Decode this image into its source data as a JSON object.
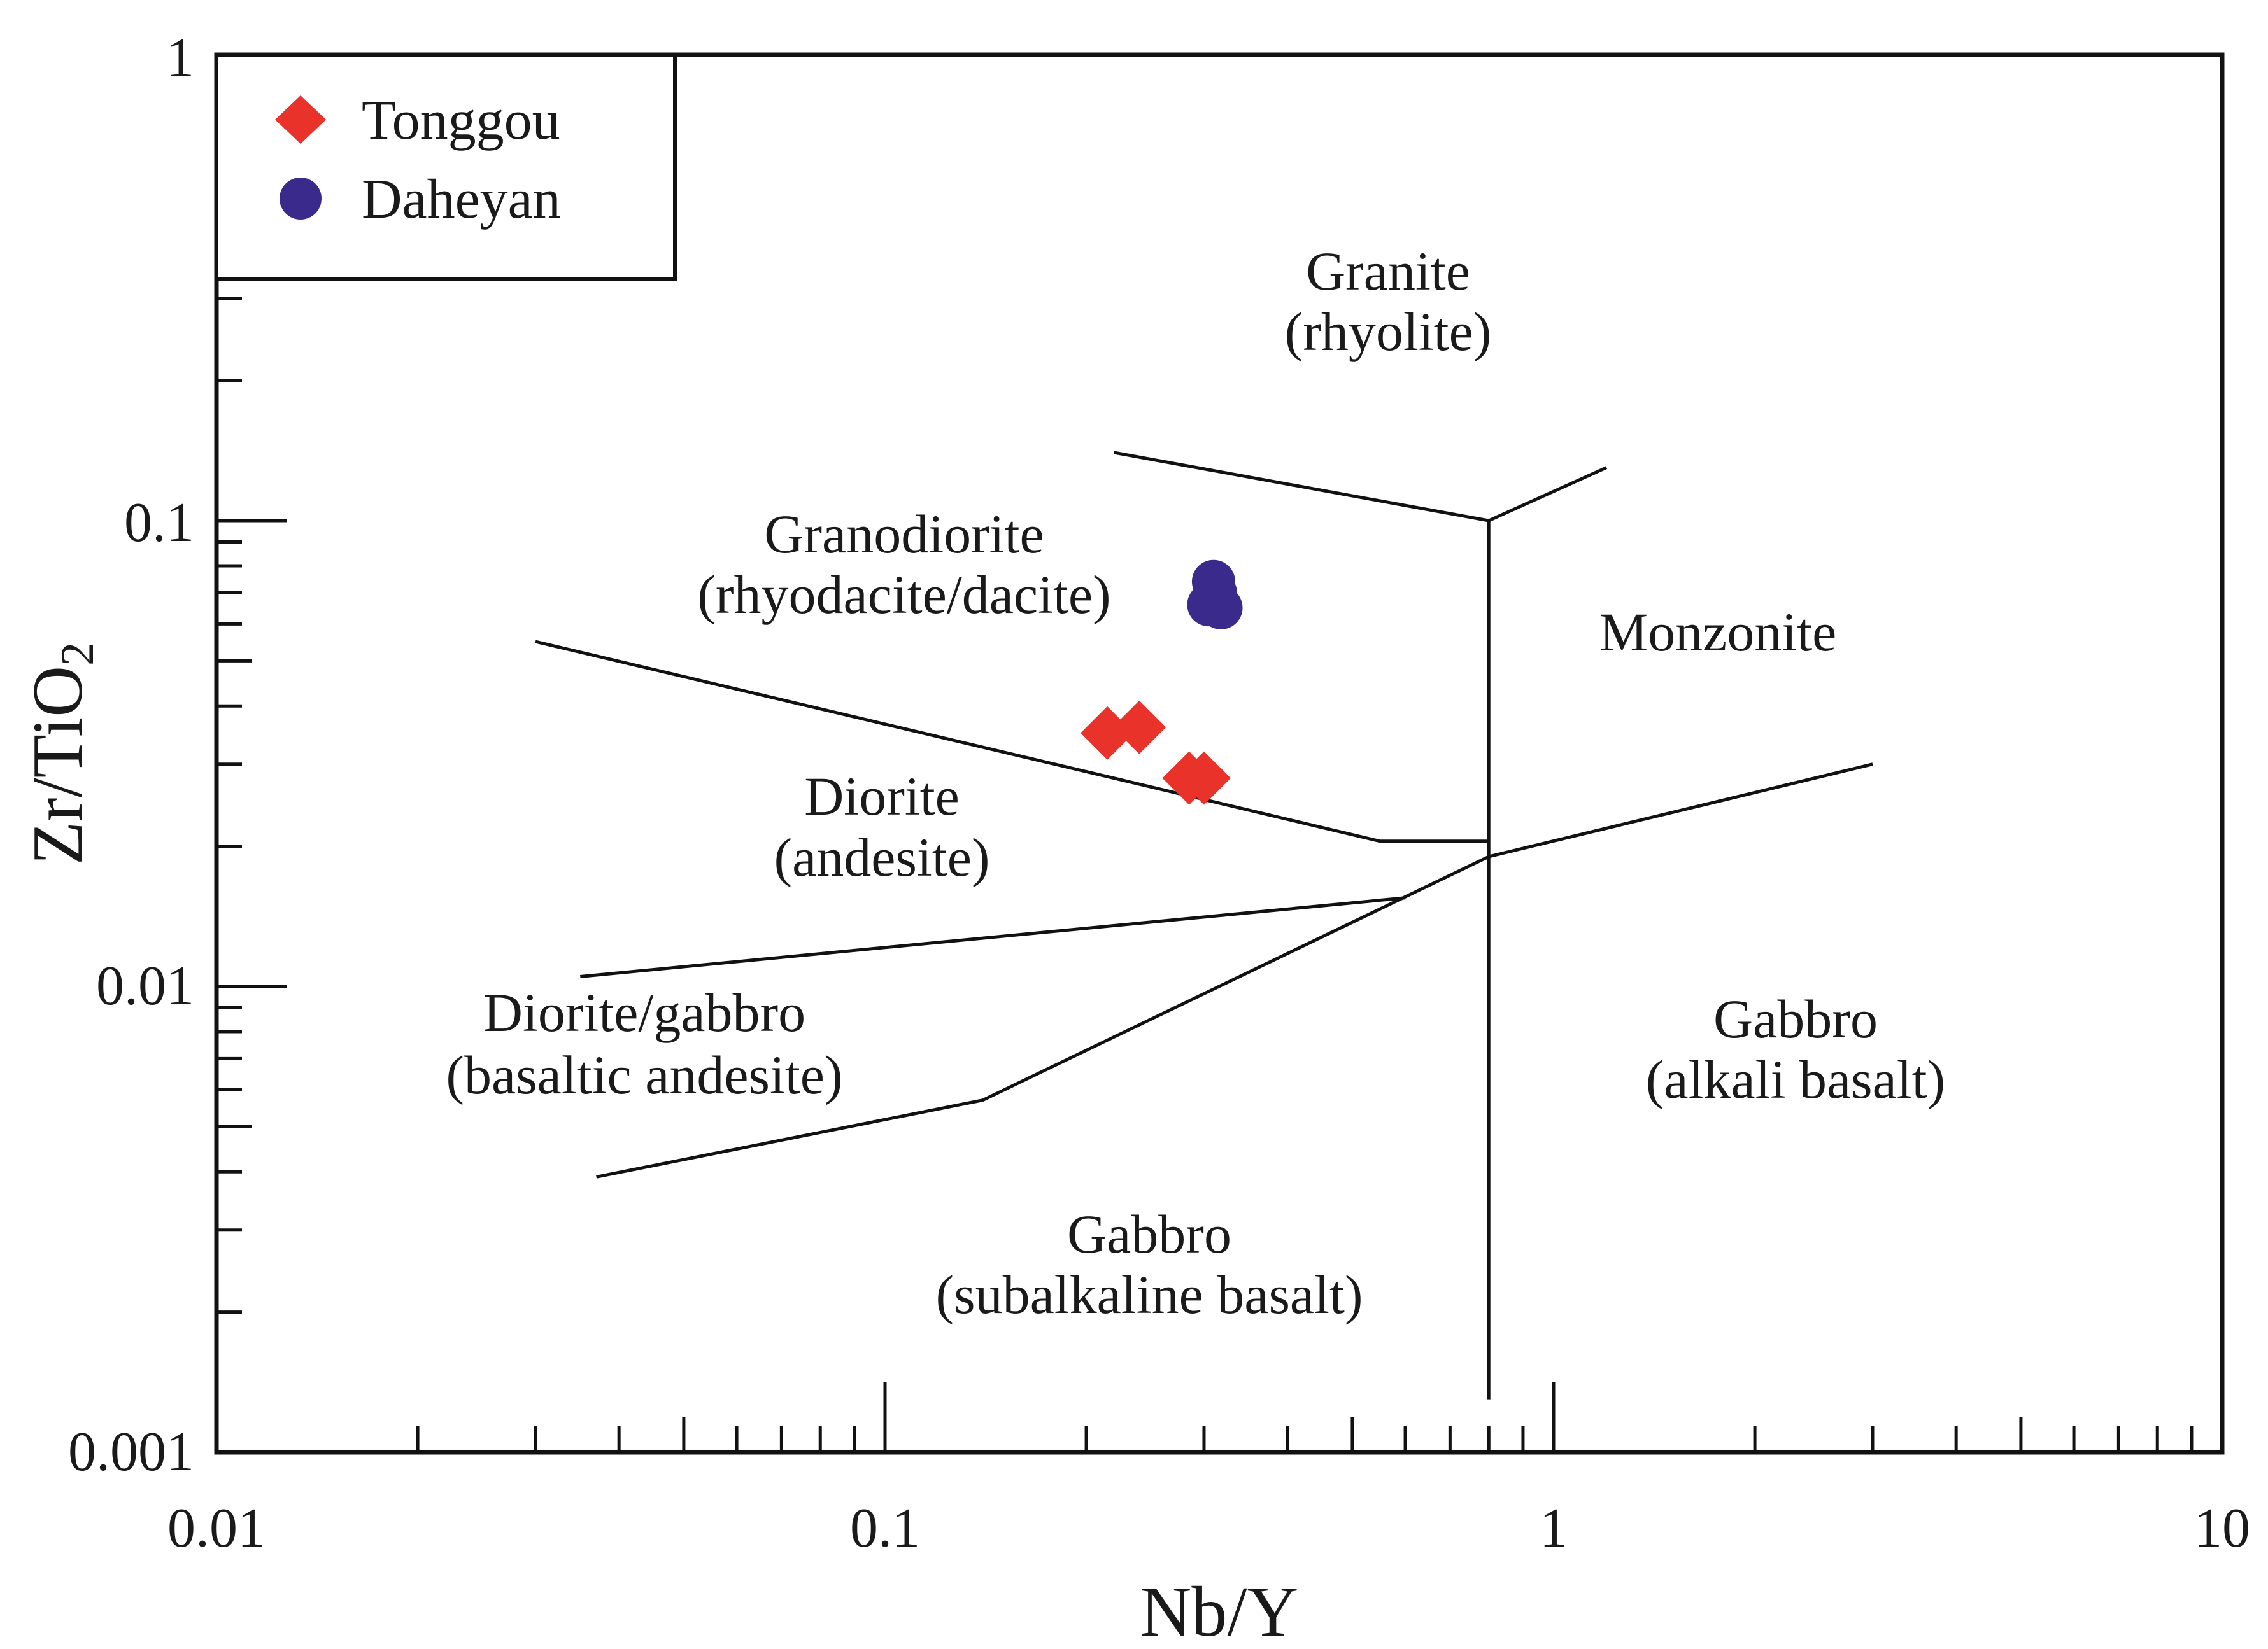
{
  "chart_data": {
    "type": "scatter",
    "title": "",
    "xlabel": "Nb/Y",
    "ylabel": "Zr/TiO",
    "ylabel_subscript": "2",
    "x_scale": "log",
    "y_scale": "log",
    "xlim": [
      0.01,
      10
    ],
    "ylim": [
      0.001,
      1
    ],
    "x_tick_labels": [
      "0.01",
      "0.1",
      "1",
      "10"
    ],
    "y_tick_labels": [
      "0.001",
      "0.01",
      "0.1",
      "1"
    ],
    "grid": false,
    "legend_position": "top-left",
    "series": [
      {
        "name": "Tonggou",
        "marker": "diamond",
        "color": "#e8322a",
        "points": [
          {
            "x": 0.215,
            "y": 0.035
          },
          {
            "x": 0.24,
            "y": 0.036
          },
          {
            "x": 0.285,
            "y": 0.028
          },
          {
            "x": 0.3,
            "y": 0.028
          }
        ]
      },
      {
        "name": "Daheyan",
        "marker": "circle",
        "color": "#3a2a8c",
        "points": [
          {
            "x": 0.31,
            "y": 0.074
          },
          {
            "x": 0.305,
            "y": 0.066
          },
          {
            "x": 0.318,
            "y": 0.065
          },
          {
            "x": 0.312,
            "y": 0.07
          }
        ]
      }
    ],
    "boundaries": [
      [
        [
          0.22,
          0.14
        ],
        [
          0.8,
          0.1
        ],
        [
          1.2,
          0.13
        ]
      ],
      [
        [
          0.8,
          0.1
        ],
        [
          0.8,
          0.0013
        ]
      ],
      [
        [
          0.03,
          0.055
        ],
        [
          0.22,
          0.028
        ],
        [
          0.55,
          0.0205
        ],
        [
          0.8,
          0.0205
        ]
      ],
      [
        [
          0.035,
          0.0105
        ],
        [
          0.6,
          0.0155
        ]
      ],
      [
        [
          0.037,
          0.0039
        ],
        [
          0.14,
          0.0057
        ],
        [
          0.8,
          0.019
        ],
        [
          3.0,
          0.03
        ]
      ]
    ],
    "fields": [
      {
        "lines": [
          "Granite",
          "(rhyolite)"
        ]
      },
      {
        "lines": [
          "Granodiorite",
          "(rhyodacite/dacite)"
        ]
      },
      {
        "lines": [
          "Monzonite"
        ]
      },
      {
        "lines": [
          "Diorite",
          "(andesite)"
        ]
      },
      {
        "lines": [
          "Diorite/gabbro",
          "(basaltic andesite)"
        ]
      },
      {
        "lines": [
          "Gabbro",
          "(alkali basalt)"
        ]
      },
      {
        "lines": [
          "Gabbro",
          "(subalkaline basalt)"
        ]
      }
    ]
  }
}
